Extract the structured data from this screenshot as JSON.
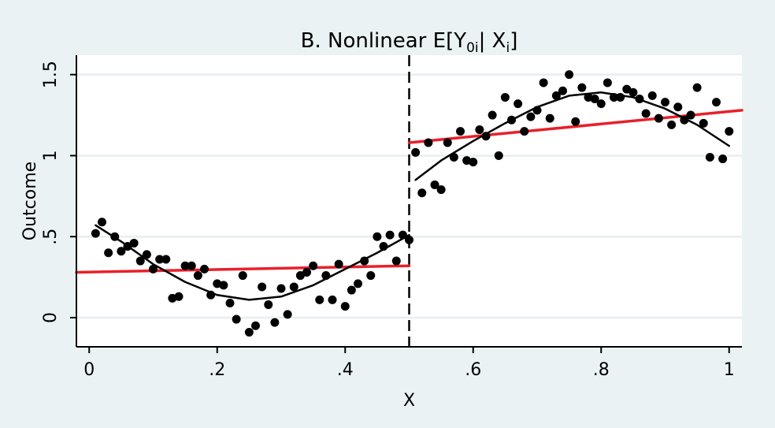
{
  "chart_data": {
    "type": "scatter",
    "title_main": "B. Nonlinear E[Y",
    "title_sub1": "0i",
    "title_mid": "| X",
    "title_sub2": "i",
    "title_end": "]",
    "xlabel": "X",
    "ylabel": "Outcome",
    "xlim": [
      -0.02,
      1.02
    ],
    "ylim": [
      -0.18,
      1.62
    ],
    "x_ticks": [
      0,
      0.2,
      0.4,
      0.6,
      0.8,
      1.0
    ],
    "x_tick_labels": [
      "0",
      ".2",
      ".4",
      ".6",
      ".8",
      "1"
    ],
    "y_ticks": [
      0,
      0.5,
      1.0,
      1.5
    ],
    "y_tick_labels": [
      "0",
      ".5",
      "1",
      "1.5"
    ],
    "grid": true,
    "cutoff_x": 0.5,
    "colors": {
      "background": "#eaf2f3",
      "plot_area": "#ffffff",
      "gridline": "#e8eef0",
      "points": "#000000",
      "smooth_fit": "#000000",
      "linear_fit": "#e8202a",
      "cutoff_line": "#000000"
    },
    "scatter_points": [
      [
        0.01,
        0.52
      ],
      [
        0.02,
        0.59
      ],
      [
        0.03,
        0.4
      ],
      [
        0.04,
        0.5
      ],
      [
        0.05,
        0.41
      ],
      [
        0.06,
        0.44
      ],
      [
        0.07,
        0.46
      ],
      [
        0.08,
        0.35
      ],
      [
        0.09,
        0.39
      ],
      [
        0.1,
        0.3
      ],
      [
        0.11,
        0.36
      ],
      [
        0.12,
        0.36
      ],
      [
        0.13,
        0.12
      ],
      [
        0.14,
        0.13
      ],
      [
        0.15,
        0.32
      ],
      [
        0.16,
        0.32
      ],
      [
        0.17,
        0.26
      ],
      [
        0.18,
        0.3
      ],
      [
        0.19,
        0.14
      ],
      [
        0.2,
        0.21
      ],
      [
        0.21,
        0.2
      ],
      [
        0.22,
        0.09
      ],
      [
        0.23,
        -0.01
      ],
      [
        0.24,
        0.26
      ],
      [
        0.25,
        -0.09
      ],
      [
        0.26,
        -0.05
      ],
      [
        0.27,
        0.19
      ],
      [
        0.28,
        0.08
      ],
      [
        0.29,
        -0.03
      ],
      [
        0.3,
        0.18
      ],
      [
        0.31,
        0.02
      ],
      [
        0.32,
        0.19
      ],
      [
        0.33,
        0.26
      ],
      [
        0.34,
        0.28
      ],
      [
        0.35,
        0.32
      ],
      [
        0.36,
        0.11
      ],
      [
        0.37,
        0.26
      ],
      [
        0.38,
        0.11
      ],
      [
        0.39,
        0.33
      ],
      [
        0.4,
        0.07
      ],
      [
        0.41,
        0.17
      ],
      [
        0.42,
        0.21
      ],
      [
        0.43,
        0.35
      ],
      [
        0.44,
        0.26
      ],
      [
        0.45,
        0.5
      ],
      [
        0.46,
        0.44
      ],
      [
        0.47,
        0.51
      ],
      [
        0.48,
        0.35
      ],
      [
        0.49,
        0.51
      ],
      [
        0.5,
        0.48
      ],
      [
        0.51,
        1.02
      ],
      [
        0.52,
        0.77
      ],
      [
        0.53,
        1.08
      ],
      [
        0.54,
        0.82
      ],
      [
        0.55,
        0.79
      ],
      [
        0.56,
        1.08
      ],
      [
        0.57,
        0.99
      ],
      [
        0.58,
        1.15
      ],
      [
        0.59,
        0.97
      ],
      [
        0.6,
        0.96
      ],
      [
        0.61,
        1.16
      ],
      [
        0.62,
        1.12
      ],
      [
        0.63,
        1.25
      ],
      [
        0.64,
        1.0
      ],
      [
        0.65,
        1.36
      ],
      [
        0.66,
        1.22
      ],
      [
        0.67,
        1.32
      ],
      [
        0.68,
        1.15
      ],
      [
        0.69,
        1.24
      ],
      [
        0.7,
        1.28
      ],
      [
        0.71,
        1.45
      ],
      [
        0.72,
        1.23
      ],
      [
        0.73,
        1.37
      ],
      [
        0.74,
        1.4
      ],
      [
        0.75,
        1.5
      ],
      [
        0.76,
        1.21
      ],
      [
        0.77,
        1.42
      ],
      [
        0.78,
        1.36
      ],
      [
        0.79,
        1.35
      ],
      [
        0.8,
        1.32
      ],
      [
        0.81,
        1.45
      ],
      [
        0.82,
        1.36
      ],
      [
        0.83,
        1.36
      ],
      [
        0.84,
        1.41
      ],
      [
        0.85,
        1.39
      ],
      [
        0.86,
        1.35
      ],
      [
        0.87,
        1.26
      ],
      [
        0.88,
        1.37
      ],
      [
        0.89,
        1.23
      ],
      [
        0.9,
        1.33
      ],
      [
        0.91,
        1.19
      ],
      [
        0.92,
        1.3
      ],
      [
        0.93,
        1.22
      ],
      [
        0.94,
        1.25
      ],
      [
        0.95,
        1.42
      ],
      [
        0.96,
        1.2
      ],
      [
        0.97,
        0.99
      ],
      [
        0.98,
        1.33
      ],
      [
        0.99,
        0.98
      ],
      [
        1.0,
        1.15
      ]
    ],
    "smooth_fit": {
      "left": [
        [
          0.01,
          0.57
        ],
        [
          0.05,
          0.47
        ],
        [
          0.1,
          0.33
        ],
        [
          0.15,
          0.22
        ],
        [
          0.2,
          0.14
        ],
        [
          0.25,
          0.11
        ],
        [
          0.3,
          0.13
        ],
        [
          0.35,
          0.2
        ],
        [
          0.4,
          0.3
        ],
        [
          0.45,
          0.4
        ],
        [
          0.5,
          0.51
        ]
      ],
      "right": [
        [
          0.51,
          0.85
        ],
        [
          0.55,
          0.97
        ],
        [
          0.6,
          1.09
        ],
        [
          0.65,
          1.2
        ],
        [
          0.7,
          1.3
        ],
        [
          0.75,
          1.37
        ],
        [
          0.8,
          1.39
        ],
        [
          0.85,
          1.36
        ],
        [
          0.9,
          1.29
        ],
        [
          0.95,
          1.19
        ],
        [
          1.0,
          1.06
        ]
      ]
    },
    "linear_fit": {
      "left": [
        [
          -0.02,
          0.28
        ],
        [
          0.5,
          0.32
        ]
      ],
      "right": [
        [
          0.5,
          1.08
        ],
        [
          1.02,
          1.28
        ]
      ]
    }
  }
}
